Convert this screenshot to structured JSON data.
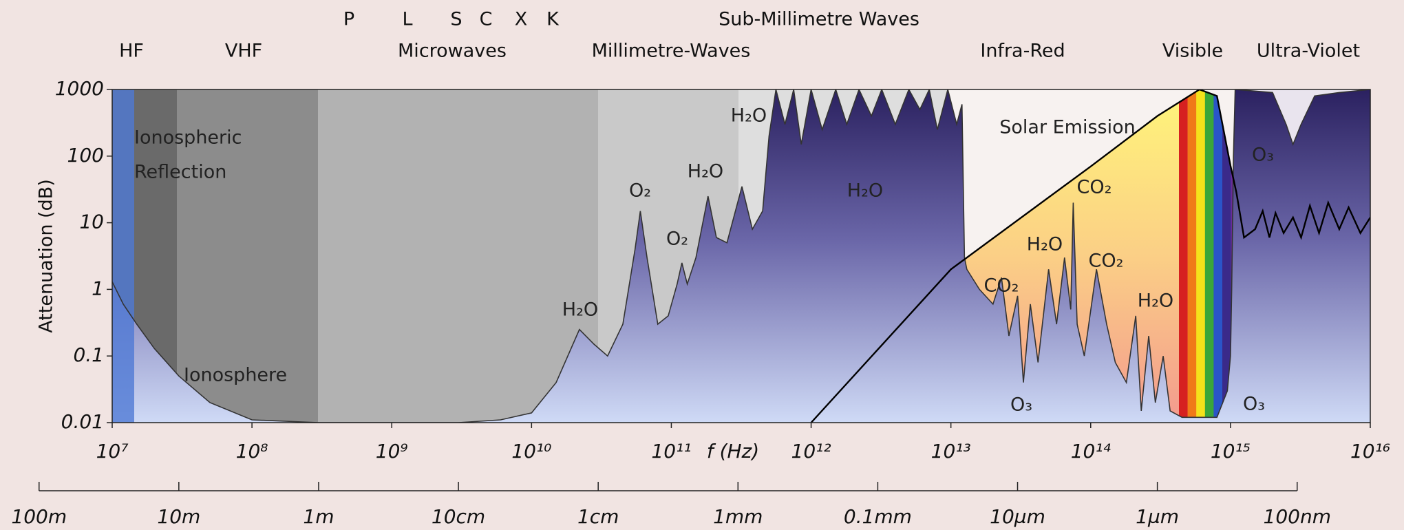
{
  "chart_data": {
    "type": "area",
    "xscale": "log",
    "yscale": "log",
    "xlabel": "f (Hz)",
    "ylabel": "Attenuation (dB)",
    "xlim": [
      10000000.0,
      1e+16
    ],
    "xticks": [
      {
        "value": 10000000.0,
        "label": "10⁷"
      },
      {
        "value": 100000000.0,
        "label": "10⁸"
      },
      {
        "value": 1000000000.0,
        "label": "10⁹"
      },
      {
        "value": 10000000000.0,
        "label": "10¹⁰"
      },
      {
        "value": 100000000000.0,
        "label": "10¹¹"
      },
      {
        "value": 1000000000000.0,
        "label": "10¹²"
      },
      {
        "value": 10000000000000.0,
        "label": "10¹³"
      },
      {
        "value": 100000000000000.0,
        "label": "10¹⁴"
      },
      {
        "value": 1000000000000000.0,
        "label": "10¹⁵"
      },
      {
        "value": 1e+16,
        "label": "10¹⁶"
      }
    ],
    "ylim": [
      0.01,
      1000
    ],
    "yticks": [
      1000,
      100,
      10,
      1,
      0.1,
      0.01
    ],
    "x2lim": [
      29.9792458,
      2.99792458e-08
    ],
    "x2ticks": [
      {
        "value": 100,
        "label": "100m"
      },
      {
        "value": 10,
        "label": "10m"
      },
      {
        "value": 1,
        "label": "1m"
      },
      {
        "value": 0.1,
        "label": "10cm"
      },
      {
        "value": 0.01,
        "label": "1cm"
      },
      {
        "value": 0.001,
        "label": "1mm"
      },
      {
        "value": 0.0001,
        "label": "0.1mm"
      },
      {
        "value": 1e-05,
        "label": "10µm"
      },
      {
        "value": 1e-06,
        "label": "1µm"
      },
      {
        "value": 1e-07,
        "label": "100nm"
      }
    ],
    "bands": [
      "HF",
      "VHF",
      "Microwaves",
      "Millimetre-Waves",
      "Sub-Millimetre Waves",
      "Infra-Red",
      "Visible",
      "Ultra-Violet"
    ],
    "radar_bands": [
      "P",
      "L",
      "S",
      "C",
      "X",
      "K"
    ],
    "x": [
      10000000.0,
      12000000.0,
      15000000.0,
      20000000.0,
      30000000.0,
      50000000.0,
      100000000.0,
      300000000.0,
      1000000000.0,
      3000000000.0,
      6000000000.0,
      10000000000.0,
      15000000000.0,
      22000000000.0,
      28000000000.0,
      35000000000.0,
      45000000000.0,
      55000000000.0,
      60000000000.0,
      67000000000.0,
      80000000000.0,
      95000000000.0,
      110000000000.0,
      119000000000.0,
      130000000000.0,
      150000000000.0,
      183000000000.0,
      210000000000.0,
      250000000000.0,
      320000000000.0,
      380000000000.0,
      450000000000.0,
      500000000000.0,
      560000000000.0,
      650000000000.0,
      750000000000.0,
      850000000000.0,
      1000000000000.0,
      1200000000000.0,
      1500000000000.0,
      1800000000000.0,
      2200000000000.0,
      2700000000000.0,
      3200000000000.0,
      4000000000000.0,
      5000000000000.0,
      6000000000000.0,
      7000000000000.0,
      8000000000000.0,
      9500000000000.0,
      11000000000000.0,
      12000000000000.0,
      12500000000000.0,
      13000000000000.0,
      16000000000000.0,
      20000000000000.0,
      23000000000000.0,
      26000000000000.0,
      30000000000000.0,
      33000000000000.0,
      37000000000000.0,
      42000000000000.0,
      50000000000000.0,
      57000000000000.0,
      65000000000000.0,
      72000000000000.0,
      75000000000000.0,
      80000000000000.0,
      90000000000000.0,
      110000000000000.0,
      130000000000000.0,
      150000000000000.0,
      180000000000000.0,
      210000000000000.0,
      230000000000000.0,
      260000000000000.0,
      290000000000000.0,
      330000000000000.0,
      370000000000000.0,
      450000000000000.0,
      600000000000000.0,
      800000000000000.0,
      950000000000000.0,
      1000000000000000.0,
      1020000000000000.0,
      1050000000000000.0,
      1080000000000000.0,
      2000000000000000.0,
      2500000000000000.0,
      2800000000000000.0,
      3200000000000000.0,
      4000000000000000.0,
      6000000000000000.0,
      1e+16
    ],
    "values": [
      1.3,
      0.6,
      0.3,
      0.13,
      0.05,
      0.02,
      0.011,
      0.01,
      0.01,
      0.01,
      0.011,
      0.014,
      0.04,
      0.25,
      0.15,
      0.1,
      0.3,
      4,
      15,
      3,
      0.3,
      0.4,
      1.2,
      2.5,
      1.2,
      3,
      25,
      6,
      5,
      35,
      8,
      15,
      200,
      1000,
      300,
      1000,
      150,
      1000,
      250,
      1000,
      300,
      1000,
      400,
      1000,
      300,
      1000,
      500,
      1000,
      250,
      1000,
      300,
      600,
      3,
      2,
      1,
      0.6,
      1.5,
      0.2,
      0.8,
      0.04,
      0.6,
      0.08,
      2,
      0.3,
      3,
      0.5,
      20,
      0.3,
      0.1,
      2,
      0.3,
      0.08,
      0.04,
      0.4,
      0.015,
      0.2,
      0.02,
      0.1,
      0.015,
      0.012,
      0.012,
      0.012,
      0.03,
      0.1,
      1,
      100,
      1000,
      900,
      300,
      150,
      300,
      800,
      900,
      1000
    ],
    "series": [
      {
        "name": "Solar Emission",
        "color": "#000000",
        "x": [
          1000000000000.0,
          10000000000000.0,
          100000000000000.0,
          300000000000000.0,
          600000000000000.0,
          800000000000000.0,
          1000000000000000.0,
          1100000000000000.0,
          1250000000000000.0,
          1500000000000000.0,
          1700000000000000.0,
          1900000000000000.0,
          2100000000000000.0,
          2400000000000000.0,
          2800000000000000.0,
          3200000000000000.0,
          3700000000000000.0,
          4300000000000000.0,
          5000000000000000.0,
          6000000000000000.0,
          7000000000000000.0,
          8500000000000000.0,
          1e+16
        ],
        "values": [
          0.01,
          2,
          70,
          400,
          1000,
          800,
          72,
          29,
          6,
          8,
          15,
          6,
          14,
          7,
          12,
          6,
          18,
          7,
          20,
          8,
          17,
          7,
          12
        ]
      }
    ],
    "annotations": [
      "Ionospheric",
      "Reflection",
      "Ionosphere",
      "H₂O",
      "O₂",
      "O₂",
      "H₂O",
      "H₂O",
      "H₂O",
      "CO₂",
      "H₂O",
      "CO₂",
      "CO₂",
      "H₂O",
      "O₃",
      "O₃",
      "O₃"
    ]
  }
}
